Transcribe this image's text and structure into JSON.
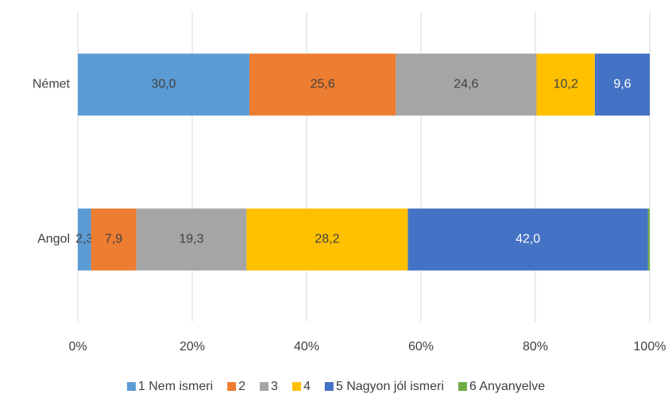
{
  "chart_data": {
    "type": "stacked_bar_horizontal_100",
    "categories": [
      "Német",
      "Angol"
    ],
    "series": [
      {
        "name": "1 Nem ismeri",
        "color": "#5b9bd5",
        "values": [
          30.0,
          2.3
        ],
        "value_labels": [
          "30,0",
          "2,3"
        ]
      },
      {
        "name": "2",
        "color": "#ed7d31",
        "values": [
          25.6,
          7.9
        ],
        "value_labels": [
          "25,6",
          "7,9"
        ]
      },
      {
        "name": "3",
        "color": "#a5a5a5",
        "values": [
          24.6,
          19.3
        ],
        "value_labels": [
          "24,6",
          "19,3"
        ]
      },
      {
        "name": "4",
        "color": "#ffc000",
        "values": [
          10.2,
          28.2
        ],
        "value_labels": [
          "10,2",
          "28,2"
        ]
      },
      {
        "name": "5 Nagyon jól ismeri",
        "color": "#4472c4",
        "values": [
          9.6,
          42.0
        ],
        "value_labels": [
          "9,6",
          "42,0"
        ]
      },
      {
        "name": "6 Anyanyelve",
        "color": "#70ad47",
        "values": [
          0,
          0.3
        ]
      }
    ],
    "xlim": [
      0,
      100
    ],
    "xticks": [
      {
        "value": 0,
        "label": "0%"
      },
      {
        "value": 20,
        "label": "20%"
      },
      {
        "value": 40,
        "label": "40%"
      },
      {
        "value": 60,
        "label": "60%"
      },
      {
        "value": 80,
        "label": "80%"
      },
      {
        "value": 100,
        "label": "100%"
      }
    ],
    "grid": true,
    "legend": "bottom"
  }
}
